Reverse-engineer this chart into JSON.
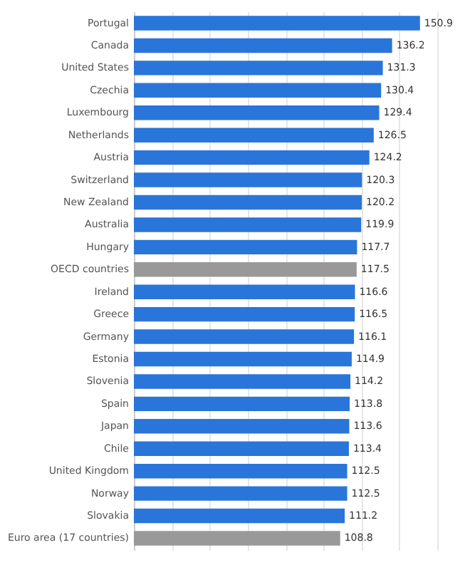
{
  "chart_data": {
    "type": "bar",
    "orientation": "horizontal",
    "categories": [
      "Portugal",
      "Canada",
      "United States",
      "Czechia",
      "Luxembourg",
      "Netherlands",
      "Austria",
      "Switzerland",
      "New Zealand",
      "Australia",
      "Hungary",
      "OECD countries",
      "Ireland",
      "Greece",
      "Germany",
      "Estonia",
      "Slovenia",
      "Spain",
      "Japan",
      "Chile",
      "United Kingdom",
      "Norway",
      "Slovakia",
      "Euro area (17 countries)"
    ],
    "values": [
      150.9,
      136.2,
      131.3,
      130.4,
      129.4,
      126.5,
      124.2,
      120.3,
      120.2,
      119.9,
      117.7,
      117.5,
      116.6,
      116.5,
      116.1,
      114.9,
      114.2,
      113.8,
      113.6,
      113.4,
      112.5,
      112.5,
      111.2,
      108.8
    ],
    "colors": [
      "#2a75d9",
      "#2a75d9",
      "#2a75d9",
      "#2a75d9",
      "#2a75d9",
      "#2a75d9",
      "#2a75d9",
      "#2a75d9",
      "#2a75d9",
      "#2a75d9",
      "#2a75d9",
      "#999999",
      "#2a75d9",
      "#2a75d9",
      "#2a75d9",
      "#2a75d9",
      "#2a75d9",
      "#2a75d9",
      "#2a75d9",
      "#2a75d9",
      "#2a75d9",
      "#2a75d9",
      "#2a75d9",
      "#999999"
    ],
    "grid": "x",
    "tick_labels": "y",
    "data_labels": true
  }
}
